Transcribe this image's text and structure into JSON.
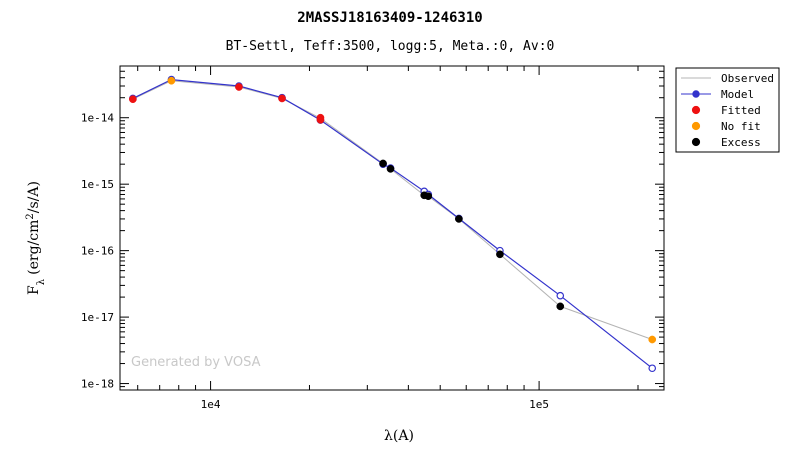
{
  "chart_data": {
    "type": "line",
    "title": "2MASSJ18163409-1246310",
    "subtitle": "BT-Settl, Teff:3500, logg:5, Meta.:0, Av:0",
    "xlabel": "λ(A)",
    "ylabel": "Fλ (erg/cm²/s/A)",
    "ylabel_parts": {
      "main": "F",
      "sub": "λ",
      "pre": "(erg/cm",
      "sup": "2",
      "post": "/s/A)"
    },
    "x_scale": "log",
    "y_scale": "log",
    "xlim": [
      5300,
      240000
    ],
    "ylim": [
      8e-19,
      6e-14
    ],
    "x_ticks": [
      {
        "value": 10000,
        "label": "1e4"
      },
      {
        "value": 100000,
        "label": "1e5"
      }
    ],
    "y_ticks": [
      {
        "value": 1e-14,
        "label": "1e-14"
      },
      {
        "value": 1e-15,
        "label": "1e-15"
      },
      {
        "value": 1e-16,
        "label": "1e-16"
      },
      {
        "value": 1e-17,
        "label": "1e-17"
      },
      {
        "value": 1e-18,
        "label": "1e-18"
      }
    ],
    "watermark": "Generated by VOSA",
    "legend": {
      "position": "right",
      "entries": [
        {
          "label": "Observed",
          "kind": "line",
          "color": "#b4b4b4"
        },
        {
          "label": "Model",
          "kind": "line-marker",
          "color": "#3333cc"
        },
        {
          "label": "Fitted",
          "kind": "marker",
          "color": "#ee1111"
        },
        {
          "label": "No fit",
          "kind": "marker",
          "color": "#ff9900"
        },
        {
          "label": "Excess",
          "kind": "marker",
          "color": "#000000"
        }
      ]
    },
    "series": [
      {
        "name": "Observed",
        "color": "#b4b4b4",
        "x": [
          5800,
          7600,
          12200,
          16500,
          21600,
          33500,
          35300,
          44700,
          46000,
          57000,
          76000,
          116000,
          221000
        ],
        "y": [
          1.9e-14,
          3.6e-14,
          2.9e-14,
          1.95e-14,
          9.8e-15,
          2.05e-15,
          1.7e-15,
          6.8e-16,
          6.6e-16,
          3e-16,
          8.8e-17,
          1.45e-17,
          4.6e-18
        ]
      },
      {
        "name": "Model",
        "color": "#3333cc",
        "x": [
          5800,
          7600,
          12200,
          16500,
          21600,
          33500,
          35300,
          44700,
          46000,
          57000,
          76000,
          116000,
          221000
        ],
        "y": [
          1.95e-14,
          3.75e-14,
          3e-14,
          2e-14,
          9.2e-15,
          2e-15,
          1.75e-15,
          7.8e-16,
          7e-16,
          3.05e-16,
          1e-16,
          2.1e-17,
          1.7e-18
        ]
      },
      {
        "name": "Fitted",
        "color": "#ee1111",
        "x": [
          5800,
          12200,
          16500,
          21600,
          21600
        ],
        "y": [
          1.9e-14,
          2.9e-14,
          1.95e-14,
          1e-14,
          9.3e-15
        ]
      },
      {
        "name": "No fit",
        "color": "#ff9900",
        "x": [
          7600,
          221000
        ],
        "y": [
          3.6e-14,
          4.6e-18
        ]
      },
      {
        "name": "Excess",
        "color": "#000000",
        "x": [
          33500,
          35300,
          44700,
          46000,
          57000,
          76000,
          116000
        ],
        "y": [
          2.05e-15,
          1.7e-15,
          6.8e-16,
          6.6e-16,
          3e-16,
          8.8e-17,
          1.45e-17
        ]
      }
    ]
  }
}
